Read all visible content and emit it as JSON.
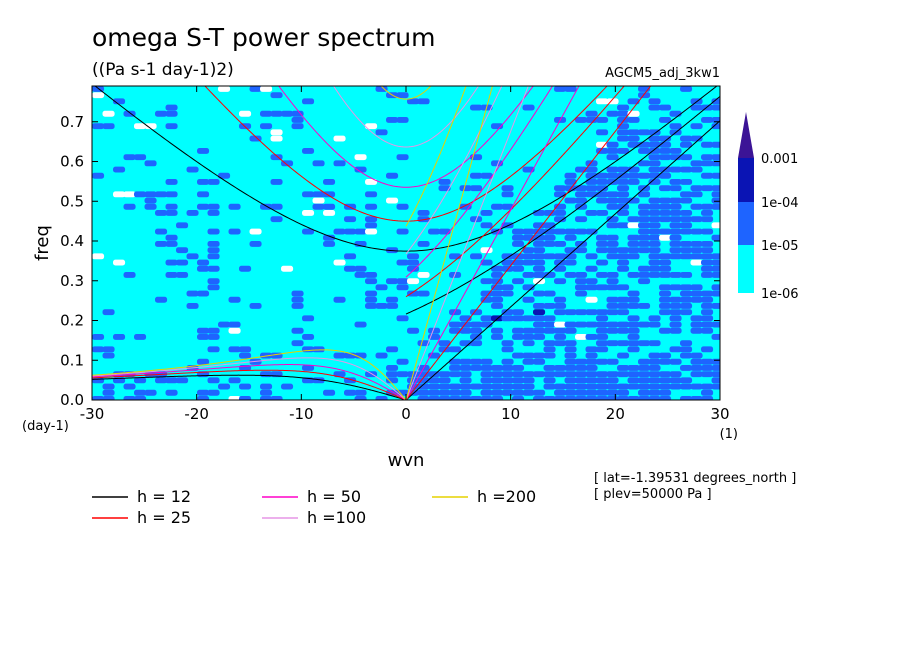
{
  "chart_data": {
    "type": "heatmap",
    "title": "omega S-T power spectrum",
    "subtitle": "((Pa s-1 day-1)2)",
    "run_label": "AGCM5_adj_3kw1",
    "xlabel": "wvn",
    "ylabel": "freq",
    "x_unit": "(1)",
    "y_unit": "(day-1)",
    "xlim": [
      -30,
      30
    ],
    "ylim": [
      0,
      0.79
    ],
    "x_ticks": [
      -30,
      -20,
      -10,
      0,
      10,
      20,
      30
    ],
    "x_tick_labels": [
      "-30",
      "-20",
      "-10",
      "0",
      "10",
      "20",
      "30"
    ],
    "y_ticks": [
      0.0,
      0.1,
      0.2,
      0.3,
      0.4,
      0.5,
      0.6,
      0.7
    ],
    "y_tick_labels": [
      "0.0",
      "0.1",
      "0.2",
      "0.3",
      "0.4",
      "0.5",
      "0.6",
      "0.7"
    ],
    "colorbar": {
      "scale": "log",
      "levels": [
        1e-06,
        1e-05,
        0.0001,
        0.001
      ],
      "labels": [
        "1e-06",
        "1e-05",
        "1e-04",
        "0.001"
      ],
      "colors": [
        "#ffffff",
        "#00ffff",
        "#1e64ff",
        "#0a14b4",
        "#3c1496"
      ],
      "extend": "max"
    },
    "dispersion_curves": [
      {
        "name": "h = 12",
        "h": 12,
        "color": "#000000"
      },
      {
        "name": "h = 25",
        "h": 25,
        "color": "#ff0000"
      },
      {
        "name": "h = 50",
        "h": 50,
        "color": "#ff00c8"
      },
      {
        "name": "h =100",
        "h": 100,
        "color": "#e696e6"
      },
      {
        "name": "h =200",
        "h": 200,
        "color": "#e6d200"
      }
    ],
    "annotations": [
      "[ lat=-1.39531 degrees_north ]",
      "[ plev=50000 Pa ]"
    ]
  }
}
